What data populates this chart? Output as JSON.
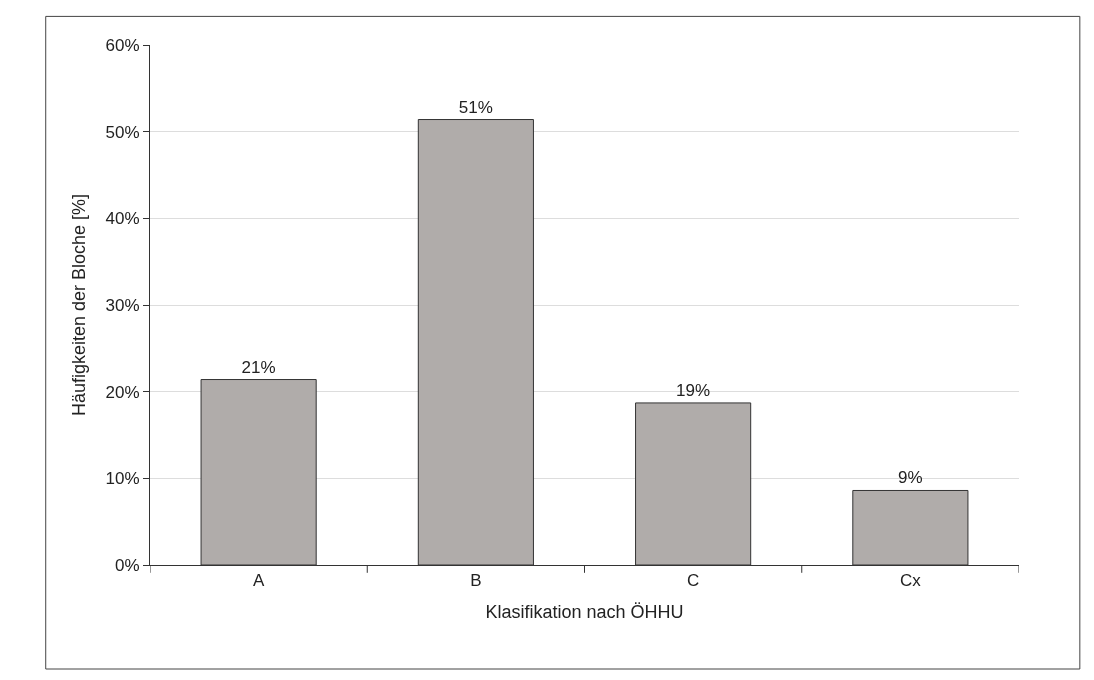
{
  "chart_data": {
    "type": "bar",
    "xlabel": "Klasifikation nach ÖHHU",
    "ylabel": "Häufigkeiten der Bloche [%]",
    "categories": [
      "A",
      "B",
      "C",
      "Cx"
    ],
    "values": [
      21.4,
      51.4,
      18.7,
      8.6
    ],
    "value_labels": [
      "21%",
      "51%",
      "19%",
      "9%"
    ],
    "color": "#b0acaa",
    "ylim": [
      0,
      60
    ],
    "yticks": [
      {
        "value": 0,
        "label": "0%"
      },
      {
        "value": 10,
        "label": "10%"
      },
      {
        "value": 20,
        "label": "20%"
      },
      {
        "value": 30,
        "label": "30%"
      },
      {
        "value": 40,
        "label": "40%"
      },
      {
        "value": 50,
        "label": "50%"
      },
      {
        "value": 60,
        "label": "60%"
      }
    ],
    "grid": "y"
  }
}
